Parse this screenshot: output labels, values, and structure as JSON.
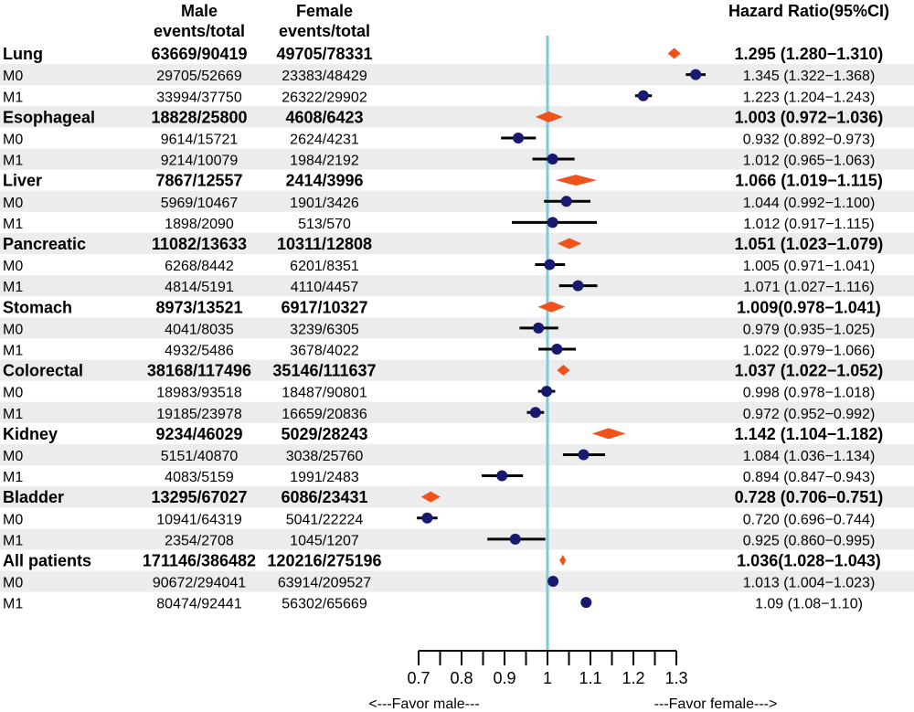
{
  "headers": {
    "male": [
      "Male",
      "events/total"
    ],
    "female": [
      "Female",
      "events/total"
    ],
    "hr": "Hazard Ratio(95%CI)"
  },
  "colors": {
    "stripe": "#ececec",
    "ref_line": "#7ec9d6",
    "summary_diamond": "#f0521c",
    "subgroup_point": "#191970",
    "ci_line": "#000000"
  },
  "axis_labels": {
    "favor_male": "<---Favor male---",
    "favor_female": "---Favor female--->"
  },
  "chart_data": {
    "type": "forest",
    "reference_value": 1,
    "xlim": [
      0.7,
      1.3
    ],
    "x_ticks": [
      0.7,
      0.8,
      0.9,
      1,
      1.1,
      1.2,
      1.3
    ],
    "x_tick_labels": [
      "0.7",
      "0.8",
      "0.9",
      "1",
      "1.1",
      "1.2",
      "1.3"
    ],
    "rows": [
      {
        "label": "Lung",
        "summary": true,
        "male": "63669/90419",
        "female": "49705/78331",
        "hr_text": "1.295 (1.280−1.310)",
        "hr": 1.295,
        "lo": 1.28,
        "hi": 1.31
      },
      {
        "label": "M0",
        "summary": false,
        "male": "29705/52669",
        "female": "23383/48429",
        "hr_text": "1.345 (1.322−1.368)",
        "hr": 1.345,
        "lo": 1.322,
        "hi": 1.368
      },
      {
        "label": "M1",
        "summary": false,
        "male": "33994/37750",
        "female": "26322/29902",
        "hr_text": "1.223 (1.204−1.243)",
        "hr": 1.223,
        "lo": 1.204,
        "hi": 1.243
      },
      {
        "label": "Esophageal",
        "summary": true,
        "male": "18828/25800",
        "female": "4608/6423",
        "hr_text": "1.003 (0.972−1.036)",
        "hr": 1.003,
        "lo": 0.972,
        "hi": 1.036
      },
      {
        "label": "M0",
        "summary": false,
        "male": "9614/15721",
        "female": "2624/4231",
        "hr_text": "0.932 (0.892−0.973)",
        "hr": 0.932,
        "lo": 0.892,
        "hi": 0.973
      },
      {
        "label": "M1",
        "summary": false,
        "male": "9214/10079",
        "female": "1984/2192",
        "hr_text": "1.012 (0.965−1.063)",
        "hr": 1.012,
        "lo": 0.965,
        "hi": 1.063
      },
      {
        "label": "Liver",
        "summary": true,
        "male": "7867/12557",
        "female": "2414/3996",
        "hr_text": "1.066 (1.019−1.115)",
        "hr": 1.066,
        "lo": 1.019,
        "hi": 1.115
      },
      {
        "label": "M0",
        "summary": false,
        "male": "5969/10467",
        "female": "1901/3426",
        "hr_text": "1.044 (0.992−1.100)",
        "hr": 1.044,
        "lo": 0.992,
        "hi": 1.1
      },
      {
        "label": "M1",
        "summary": false,
        "male": "1898/2090",
        "female": "513/570",
        "hr_text": "1.012 (0.917−1.115)",
        "hr": 1.012,
        "lo": 0.917,
        "hi": 1.115
      },
      {
        "label": "Pancreatic",
        "summary": true,
        "male": "11082/13633",
        "female": "10311/12808",
        "hr_text": "1.051 (1.023−1.079)",
        "hr": 1.051,
        "lo": 1.023,
        "hi": 1.079
      },
      {
        "label": "M0",
        "summary": false,
        "male": "6268/8442",
        "female": "6201/8351",
        "hr_text": "1.005 (0.971−1.041)",
        "hr": 1.005,
        "lo": 0.971,
        "hi": 1.041
      },
      {
        "label": "M1",
        "summary": false,
        "male": "4814/5191",
        "female": "4110/4457",
        "hr_text": "1.071 (1.027−1.116)",
        "hr": 1.071,
        "lo": 1.027,
        "hi": 1.116
      },
      {
        "label": "Stomach",
        "summary": true,
        "male": "8973/13521",
        "female": "6917/10327",
        "hr_text": "1.009(0.978−1.041)",
        "hr": 1.009,
        "lo": 0.978,
        "hi": 1.041
      },
      {
        "label": "M0",
        "summary": false,
        "male": "4041/8035",
        "female": "3239/6305",
        "hr_text": "0.979 (0.935−1.025)",
        "hr": 0.979,
        "lo": 0.935,
        "hi": 1.025
      },
      {
        "label": "M1",
        "summary": false,
        "male": "4932/5486",
        "female": "3678/4022",
        "hr_text": "1.022 (0.979−1.066)",
        "hr": 1.022,
        "lo": 0.979,
        "hi": 1.066
      },
      {
        "label": "Colorectal",
        "summary": true,
        "male": "38168/117496",
        "female": "35146/111637",
        "hr_text": "1.037 (1.022−1.052)",
        "hr": 1.037,
        "lo": 1.022,
        "hi": 1.052
      },
      {
        "label": "M0",
        "summary": false,
        "male": "18983/93518",
        "female": "18487/90801",
        "hr_text": "0.998 (0.978−1.018)",
        "hr": 0.998,
        "lo": 0.978,
        "hi": 1.018
      },
      {
        "label": "M1",
        "summary": false,
        "male": "19185/23978",
        "female": "16659/20836",
        "hr_text": "0.972 (0.952−0.992)",
        "hr": 0.972,
        "lo": 0.952,
        "hi": 0.992
      },
      {
        "label": "Kidney",
        "summary": true,
        "male": "9234/46029",
        "female": "5029/28243",
        "hr_text": "1.142 (1.104−1.182)",
        "hr": 1.142,
        "lo": 1.104,
        "hi": 1.182
      },
      {
        "label": "M0",
        "summary": false,
        "male": "5151/40870",
        "female": "3038/25760",
        "hr_text": "1.084 (1.036−1.134)",
        "hr": 1.084,
        "lo": 1.036,
        "hi": 1.134
      },
      {
        "label": "M1",
        "summary": false,
        "male": "4083/5159",
        "female": "1991/2483",
        "hr_text": "0.894 (0.847−0.943)",
        "hr": 0.894,
        "lo": 0.847,
        "hi": 0.943
      },
      {
        "label": "Bladder",
        "summary": true,
        "male": "13295/67027",
        "female": "6086/23431",
        "hr_text": "0.728 (0.706−0.751)",
        "hr": 0.728,
        "lo": 0.706,
        "hi": 0.751
      },
      {
        "label": "M0",
        "summary": false,
        "male": "10941/64319",
        "female": "5041/22224",
        "hr_text": "0.720 (0.696−0.744)",
        "hr": 0.72,
        "lo": 0.696,
        "hi": 0.744
      },
      {
        "label": "M1",
        "summary": false,
        "male": "2354/2708",
        "female": "1045/1207",
        "hr_text": "0.925 (0.860−0.995)",
        "hr": 0.925,
        "lo": 0.86,
        "hi": 0.995
      },
      {
        "label": "All patients",
        "summary": true,
        "male": "171146/386482",
        "female": "120216/275196",
        "hr_text": "1.036(1.028−1.043)",
        "hr": 1.036,
        "lo": 1.028,
        "hi": 1.043
      },
      {
        "label": "M0",
        "summary": false,
        "male": "90672/294041",
        "female": "63914/209527",
        "hr_text": "1.013 (1.004−1.023)",
        "hr": 1.013,
        "lo": 1.004,
        "hi": 1.023
      },
      {
        "label": "M1",
        "summary": false,
        "male": "80474/92441",
        "female": "56302/65669",
        "hr_text": "1.09 (1.08−1.10)",
        "hr": 1.09,
        "lo": 1.08,
        "hi": 1.1
      }
    ]
  }
}
